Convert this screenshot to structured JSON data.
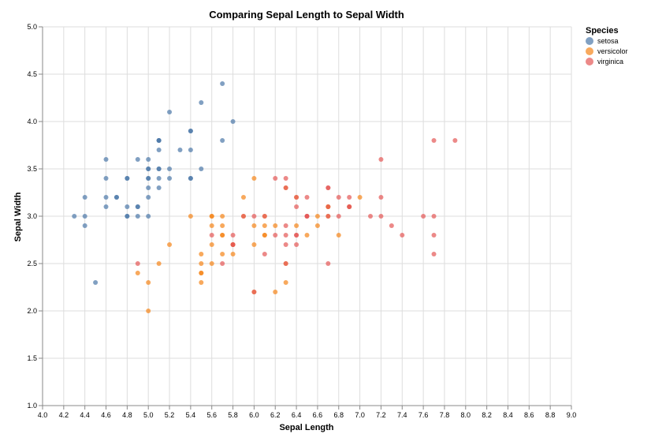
{
  "chart_data": {
    "type": "scatter",
    "title": "Comparing Sepal Length to Sepal Width",
    "xlabel": "Sepal Length",
    "ylabel": "Sepal Width",
    "xlim": [
      4.0,
      9.0
    ],
    "ylim": [
      1.0,
      5.0
    ],
    "x_ticks": [
      4.0,
      4.2,
      4.4,
      4.6,
      4.8,
      5.0,
      5.2,
      5.4,
      5.6,
      5.8,
      6.0,
      6.2,
      6.4,
      6.6,
      6.8,
      7.0,
      7.2,
      7.4,
      7.6,
      7.8,
      8.0,
      8.2,
      8.4,
      8.6,
      8.8,
      9.0
    ],
    "y_ticks": [
      1.0,
      1.5,
      2.0,
      2.5,
      3.0,
      3.5,
      4.0,
      4.5,
      5.0
    ],
    "grid": true,
    "legend": {
      "title": "Species",
      "placement": "top-right"
    },
    "series": [
      {
        "name": "setosa",
        "color": "#4c78a8",
        "points": [
          [
            5.1,
            3.5
          ],
          [
            4.9,
            3.0
          ],
          [
            4.7,
            3.2
          ],
          [
            4.6,
            3.1
          ],
          [
            5.0,
            3.6
          ],
          [
            5.4,
            3.9
          ],
          [
            4.6,
            3.4
          ],
          [
            5.0,
            3.4
          ],
          [
            4.4,
            2.9
          ],
          [
            4.9,
            3.1
          ],
          [
            5.4,
            3.7
          ],
          [
            4.8,
            3.4
          ],
          [
            4.8,
            3.0
          ],
          [
            4.3,
            3.0
          ],
          [
            5.8,
            4.0
          ],
          [
            5.7,
            4.4
          ],
          [
            5.4,
            3.9
          ],
          [
            5.1,
            3.5
          ],
          [
            5.7,
            3.8
          ],
          [
            5.1,
            3.8
          ],
          [
            5.4,
            3.4
          ],
          [
            5.1,
            3.7
          ],
          [
            4.6,
            3.6
          ],
          [
            5.1,
            3.3
          ],
          [
            4.8,
            3.4
          ],
          [
            5.0,
            3.0
          ],
          [
            5.0,
            3.4
          ],
          [
            5.2,
            3.5
          ],
          [
            5.2,
            3.4
          ],
          [
            4.7,
            3.2
          ],
          [
            4.8,
            3.1
          ],
          [
            5.4,
            3.4
          ],
          [
            5.2,
            4.1
          ],
          [
            5.5,
            4.2
          ],
          [
            4.9,
            3.1
          ],
          [
            5.0,
            3.2
          ],
          [
            5.5,
            3.5
          ],
          [
            4.9,
            3.6
          ],
          [
            4.4,
            3.0
          ],
          [
            5.1,
            3.4
          ],
          [
            5.0,
            3.5
          ],
          [
            4.5,
            2.3
          ],
          [
            4.4,
            3.2
          ],
          [
            5.0,
            3.5
          ],
          [
            5.1,
            3.8
          ],
          [
            4.8,
            3.0
          ],
          [
            5.1,
            3.8
          ],
          [
            4.6,
            3.2
          ],
          [
            5.3,
            3.7
          ],
          [
            5.0,
            3.3
          ]
        ]
      },
      {
        "name": "versicolor",
        "color": "#f58518",
        "points": [
          [
            7.0,
            3.2
          ],
          [
            6.4,
            3.2
          ],
          [
            6.9,
            3.1
          ],
          [
            5.5,
            2.3
          ],
          [
            6.5,
            2.8
          ],
          [
            5.7,
            2.8
          ],
          [
            6.3,
            3.3
          ],
          [
            4.9,
            2.4
          ],
          [
            6.6,
            2.9
          ],
          [
            5.2,
            2.7
          ],
          [
            5.0,
            2.0
          ],
          [
            5.9,
            3.0
          ],
          [
            6.0,
            2.2
          ],
          [
            6.1,
            2.9
          ],
          [
            5.6,
            2.9
          ],
          [
            6.7,
            3.1
          ],
          [
            5.6,
            3.0
          ],
          [
            5.8,
            2.7
          ],
          [
            6.2,
            2.2
          ],
          [
            5.6,
            2.5
          ],
          [
            5.9,
            3.2
          ],
          [
            6.1,
            2.8
          ],
          [
            6.3,
            2.5
          ],
          [
            6.1,
            2.8
          ],
          [
            6.4,
            2.9
          ],
          [
            6.6,
            3.0
          ],
          [
            6.8,
            2.8
          ],
          [
            6.7,
            3.0
          ],
          [
            6.0,
            2.9
          ],
          [
            5.7,
            2.6
          ],
          [
            5.5,
            2.4
          ],
          [
            5.5,
            2.4
          ],
          [
            5.8,
            2.7
          ],
          [
            6.0,
            2.7
          ],
          [
            5.4,
            3.0
          ],
          [
            6.0,
            3.4
          ],
          [
            6.7,
            3.1
          ],
          [
            6.3,
            2.3
          ],
          [
            5.6,
            3.0
          ],
          [
            5.5,
            2.5
          ],
          [
            5.5,
            2.6
          ],
          [
            6.1,
            3.0
          ],
          [
            5.8,
            2.6
          ],
          [
            5.0,
            2.3
          ],
          [
            5.6,
            2.7
          ],
          [
            5.7,
            3.0
          ],
          [
            5.7,
            2.9
          ],
          [
            6.2,
            2.9
          ],
          [
            5.1,
            2.5
          ],
          [
            5.7,
            2.8
          ]
        ]
      },
      {
        "name": "virginica",
        "color": "#e45756",
        "points": [
          [
            6.3,
            3.3
          ],
          [
            5.8,
            2.7
          ],
          [
            7.1,
            3.0
          ],
          [
            6.3,
            2.9
          ],
          [
            6.5,
            3.0
          ],
          [
            7.6,
            3.0
          ],
          [
            4.9,
            2.5
          ],
          [
            7.3,
            2.9
          ],
          [
            6.7,
            2.5
          ],
          [
            7.2,
            3.6
          ],
          [
            6.5,
            3.2
          ],
          [
            6.4,
            2.7
          ],
          [
            6.8,
            3.0
          ],
          [
            5.7,
            2.5
          ],
          [
            5.8,
            2.8
          ],
          [
            6.4,
            3.2
          ],
          [
            6.5,
            3.0
          ],
          [
            7.7,
            3.8
          ],
          [
            7.7,
            2.6
          ],
          [
            6.0,
            2.2
          ],
          [
            6.9,
            3.2
          ],
          [
            5.6,
            2.8
          ],
          [
            7.7,
            2.8
          ],
          [
            6.3,
            2.7
          ],
          [
            6.7,
            3.3
          ],
          [
            7.2,
            3.2
          ],
          [
            6.2,
            2.8
          ],
          [
            6.1,
            3.0
          ],
          [
            6.4,
            2.8
          ],
          [
            7.2,
            3.0
          ],
          [
            7.4,
            2.8
          ],
          [
            7.9,
            3.8
          ],
          [
            6.4,
            2.8
          ],
          [
            6.3,
            2.8
          ],
          [
            6.1,
            2.6
          ],
          [
            7.7,
            3.0
          ],
          [
            6.3,
            3.4
          ],
          [
            6.4,
            3.1
          ],
          [
            6.0,
            3.0
          ],
          [
            6.9,
            3.1
          ],
          [
            6.7,
            3.1
          ],
          [
            6.9,
            3.1
          ],
          [
            5.8,
            2.7
          ],
          [
            6.8,
            3.2
          ],
          [
            6.7,
            3.3
          ],
          [
            6.7,
            3.0
          ],
          [
            6.3,
            2.5
          ],
          [
            6.5,
            3.0
          ],
          [
            6.2,
            3.4
          ],
          [
            5.9,
            3.0
          ]
        ]
      }
    ]
  }
}
